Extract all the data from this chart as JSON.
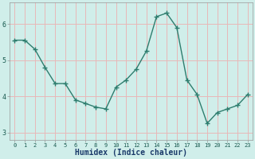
{
  "x": [
    0,
    1,
    2,
    3,
    4,
    5,
    6,
    7,
    8,
    9,
    10,
    11,
    12,
    13,
    14,
    15,
    16,
    17,
    18,
    19,
    20,
    21,
    22,
    23
  ],
  "y": [
    5.55,
    5.55,
    5.3,
    4.8,
    4.35,
    4.35,
    3.9,
    3.8,
    3.7,
    3.65,
    4.25,
    4.45,
    4.75,
    5.25,
    6.2,
    6.3,
    5.9,
    4.45,
    4.05,
    3.25,
    3.55,
    3.65,
    3.75,
    4.05
  ],
  "line_color": "#2e7d6e",
  "marker": "+",
  "marker_size": 4,
  "bg_color": "#d0eeea",
  "plot_bg_color": "#d0eeea",
  "grid_color": "#e8b8b8",
  "xlabel": "Humidex (Indice chaleur)",
  "ylim": [
    2.8,
    6.6
  ],
  "xlim": [
    -0.5,
    23.5
  ],
  "yticks": [
    3,
    4,
    5,
    6
  ],
  "xticks": [
    0,
    1,
    2,
    3,
    4,
    5,
    6,
    7,
    8,
    9,
    10,
    11,
    12,
    13,
    14,
    15,
    16,
    17,
    18,
    19,
    20,
    21,
    22,
    23
  ],
  "tick_label_color": "#1a5a50",
  "xlabel_color": "#1a3a6a",
  "xlabel_fontsize": 7,
  "tick_fontsize": 5,
  "linewidth": 1.0
}
